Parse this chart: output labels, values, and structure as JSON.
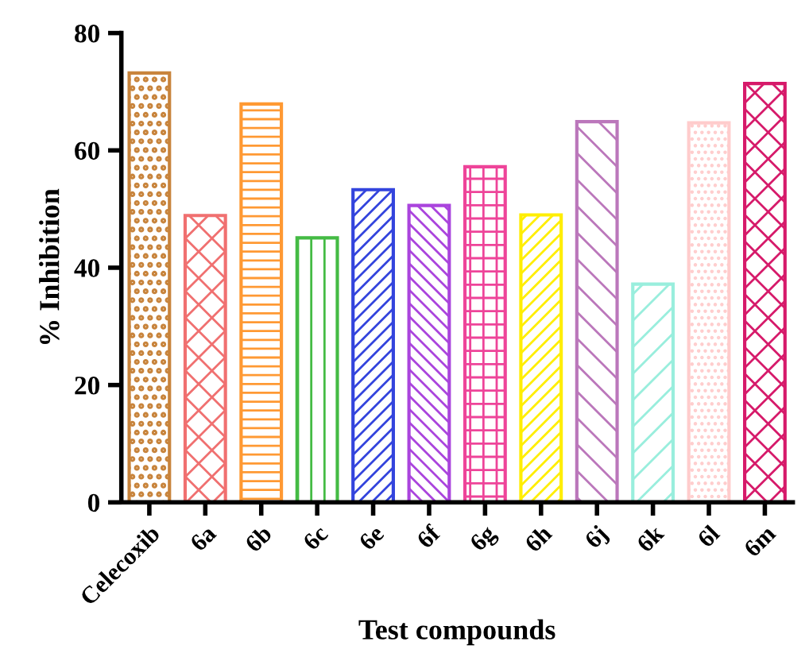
{
  "chart_data": {
    "type": "bar",
    "xlabel": "Test compounds",
    "ylabel": "% Inhibition",
    "categories": [
      "Celecoxib",
      "6a",
      "6b",
      "6c",
      "6e",
      "6f",
      "6g",
      "6h",
      "6j",
      "6k",
      "6l",
      "6m"
    ],
    "values": [
      73.2,
      48.9,
      67.9,
      45.1,
      53.3,
      50.6,
      57.2,
      49.0,
      64.9,
      37.2,
      64.7,
      71.4
    ],
    "colors": [
      "#c8843c",
      "#f07070",
      "#ff9933",
      "#44bb44",
      "#3344dd",
      "#aa44dd",
      "#ee4499",
      "#ffee00",
      "#bb77bb",
      "#99eedd",
      "#ffcccc",
      "#d61a6a"
    ],
    "ylim": [
      0,
      80
    ],
    "yticks": [
      0,
      20,
      40,
      60,
      80
    ],
    "grid": false
  }
}
